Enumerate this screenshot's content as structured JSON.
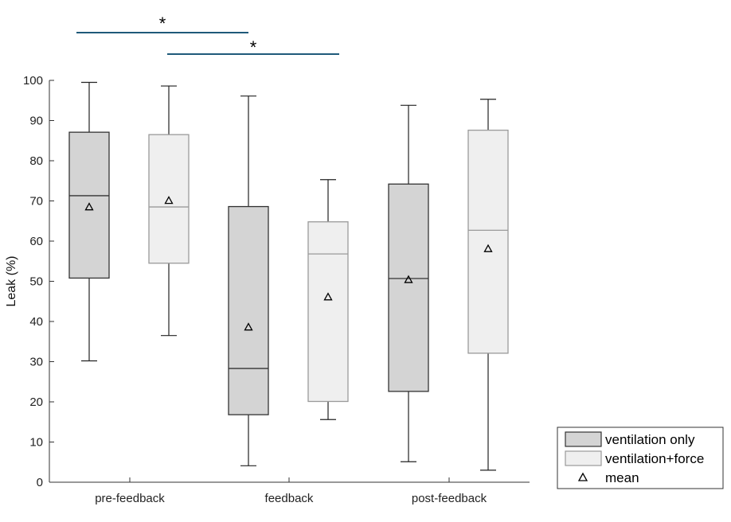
{
  "chart_data": {
    "type": "box",
    "categories": [
      "pre-feedback",
      "feedback",
      "post-feedback"
    ],
    "ylabel": "Leak (%)",
    "ylim": [
      0,
      100
    ],
    "yticks": [
      0,
      10,
      20,
      30,
      40,
      50,
      60,
      70,
      80,
      90,
      100
    ],
    "grid": false,
    "legend_position": "bottom-right",
    "series": [
      {
        "name": "ventilation only",
        "fill": "#d4d4d4",
        "stroke": "#333333",
        "boxes": [
          {
            "whisker_low": 30.2,
            "q1": 50.8,
            "median": 71.3,
            "q3": 87.1,
            "whisker_high": 99.5,
            "mean": 68.5
          },
          {
            "whisker_low": 4.1,
            "q1": 16.8,
            "median": 28.3,
            "q3": 68.6,
            "whisker_high": 96.1,
            "mean": 38.6
          },
          {
            "whisker_low": 5.1,
            "q1": 22.6,
            "median": 50.7,
            "q3": 74.2,
            "whisker_high": 93.8,
            "mean": 50.4
          }
        ]
      },
      {
        "name": "ventilation+force",
        "fill": "#efefef",
        "stroke": "#9a9a9a",
        "boxes": [
          {
            "whisker_low": 36.5,
            "q1": 54.5,
            "median": 68.5,
            "q3": 86.5,
            "whisker_high": 98.6,
            "mean": 70.1
          },
          {
            "whisker_low": 15.6,
            "q1": 20.1,
            "median": 56.8,
            "q3": 64.8,
            "whisker_high": 75.3,
            "mean": 46.1
          },
          {
            "whisker_low": 3.0,
            "q1": 32.1,
            "median": 62.7,
            "q3": 87.6,
            "whisker_high": 95.3,
            "mean": 58.1
          }
        ]
      }
    ],
    "mean_marker": {
      "name": "mean",
      "symbol": "△"
    },
    "significance": [
      {
        "label": "*",
        "from": "pre-feedback / ventilation only",
        "to": "feedback / ventilation only",
        "color": "#1f5a7a"
      },
      {
        "label": "*",
        "from": "pre-feedback / ventilation+force",
        "to": "feedback / ventilation+force",
        "color": "#1f5a7a"
      }
    ]
  }
}
